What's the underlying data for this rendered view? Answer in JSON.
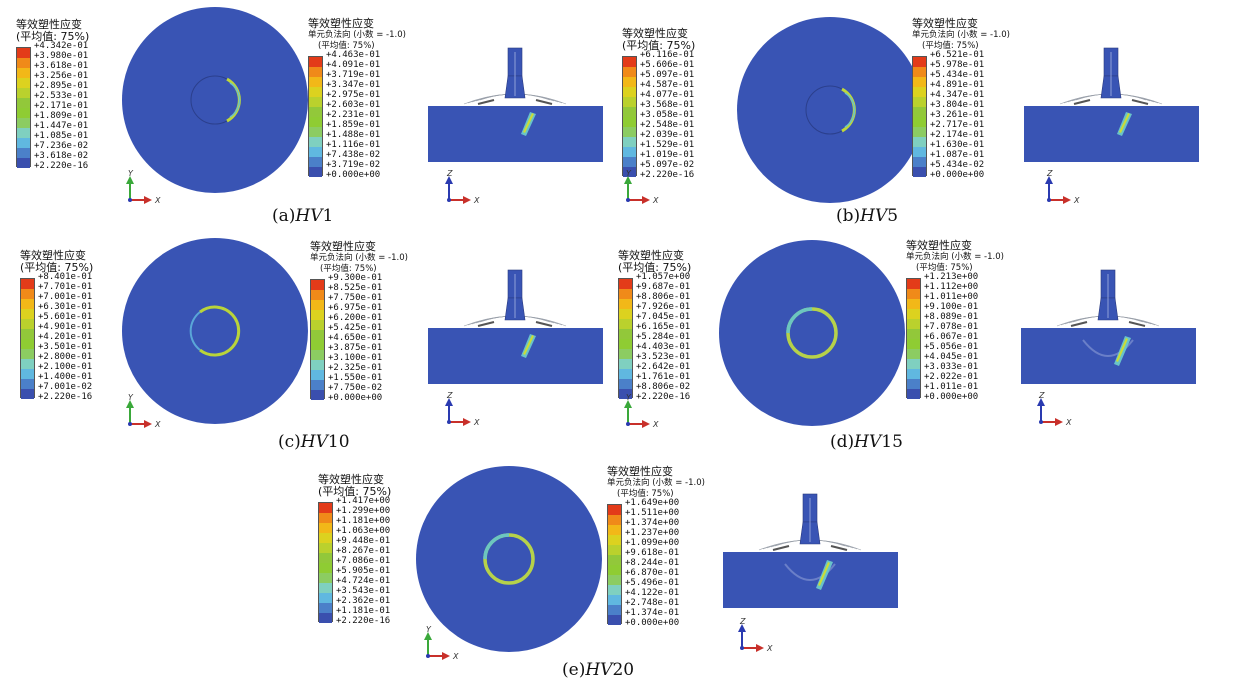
{
  "colors": {
    "model_blue": "#3954b4",
    "legend": [
      "#3a4fae",
      "#3a4fae",
      "#4b80c9",
      "#60b8e0",
      "#7fd0c0",
      "#8ccc62",
      "#8fcc33",
      "#92c83a",
      "#bad12d",
      "#dcd21f",
      "#f2b818",
      "#f08a19",
      "#e33b19"
    ]
  },
  "panels": [
    {
      "id": "a",
      "caption_prefix": "(a)",
      "caption_var": "HV",
      "caption_num": "1",
      "left_legend": {
        "title": "等效塑性应变",
        "sub": "(平均值: 75%)",
        "values": [
          "+4.342e-01",
          "+3.980e-01",
          "+3.618e-01",
          "+3.256e-01",
          "+2.895e-01",
          "+2.533e-01",
          "+2.171e-01",
          "+1.809e-01",
          "+1.447e-01",
          "+1.085e-01",
          "+7.236e-02",
          "+3.618e-02",
          "+2.220e-16"
        ]
      },
      "right_legend": {
        "title": "等效塑性应变",
        "sub1": "单元负法向 (小数 = -1.0)",
        "sub2": "(平均值: 75%)",
        "values": [
          "+4.463e-01",
          "+4.091e-01",
          "+3.719e-01",
          "+3.347e-01",
          "+2.975e-01",
          "+2.603e-01",
          "+2.231e-01",
          "+1.859e-01",
          "+1.488e-01",
          "+1.116e-01",
          "+7.438e-02",
          "+3.719e-02",
          "+0.000e+00"
        ]
      },
      "ring": "partial"
    },
    {
      "id": "b",
      "caption_prefix": "(b)",
      "caption_var": "HV",
      "caption_num": "5",
      "left_legend": {
        "title": "等效塑性应变",
        "sub": "(平均值: 75%)",
        "values": [
          "+6.116e-01",
          "+5.606e-01",
          "+5.097e-01",
          "+4.587e-01",
          "+4.077e-01",
          "+3.568e-01",
          "+3.058e-01",
          "+2.548e-01",
          "+2.039e-01",
          "+1.529e-01",
          "+1.019e-01",
          "+5.097e-02",
          "+2.220e-16"
        ]
      },
      "right_legend": {
        "title": "等效塑性应变",
        "sub1": "单元负法向 (小数 = -1.0)",
        "sub2": "(平均值: 75%)",
        "values": [
          "+6.521e-01",
          "+5.978e-01",
          "+5.434e-01",
          "+4.891e-01",
          "+4.347e-01",
          "+3.804e-01",
          "+3.261e-01",
          "+2.717e-01",
          "+2.174e-01",
          "+1.630e-01",
          "+1.087e-01",
          "+5.434e-02",
          "+0.000e+00"
        ]
      },
      "ring": "partial"
    },
    {
      "id": "c",
      "caption_prefix": "(c)",
      "caption_var": "HV",
      "caption_num": "10",
      "left_legend": {
        "title": "等效塑性应变",
        "sub": "(平均值: 75%)",
        "values": [
          "+8.401e-01",
          "+7.701e-01",
          "+7.001e-01",
          "+6.301e-01",
          "+5.601e-01",
          "+4.901e-01",
          "+4.201e-01",
          "+3.501e-01",
          "+2.800e-01",
          "+2.100e-01",
          "+1.400e-01",
          "+7.001e-02",
          "+2.220e-16"
        ]
      },
      "right_legend": {
        "title": "等效塑性应变",
        "sub1": "单元负法向 (小数 = -1.0)",
        "sub2": "(平均值: 75%)",
        "values": [
          "+9.300e-01",
          "+8.525e-01",
          "+7.750e-01",
          "+6.975e-01",
          "+6.200e-01",
          "+5.425e-01",
          "+4.650e-01",
          "+3.875e-01",
          "+3.100e-01",
          "+2.325e-01",
          "+1.550e-01",
          "+7.750e-02",
          "+0.000e+00"
        ]
      },
      "ring": "mostly"
    },
    {
      "id": "d",
      "caption_prefix": "(d)",
      "caption_var": "HV",
      "caption_num": "15",
      "left_legend": {
        "title": "等效塑性应变",
        "sub": "(平均值: 75%)",
        "values": [
          "+1.057e+00",
          "+9.687e-01",
          "+8.806e-01",
          "+7.926e-01",
          "+7.045e-01",
          "+6.165e-01",
          "+5.284e-01",
          "+4.403e-01",
          "+3.523e-01",
          "+2.642e-01",
          "+1.761e-01",
          "+8.806e-02",
          "+2.220e-16"
        ]
      },
      "right_legend": {
        "title": "等效塑性应变",
        "sub1": "单元负法向 (小数 = -1.0)",
        "sub2": "(平均值: 75%)",
        "values": [
          "+1.213e+00",
          "+1.112e+00",
          "+1.011e+00",
          "+9.100e-01",
          "+8.089e-01",
          "+7.078e-01",
          "+6.067e-01",
          "+5.056e-01",
          "+4.045e-01",
          "+3.033e-01",
          "+2.022e-01",
          "+1.011e-01",
          "+0.000e+00"
        ]
      },
      "ring": "full"
    },
    {
      "id": "e",
      "caption_prefix": "(e)",
      "caption_var": "HV",
      "caption_num": "20",
      "left_legend": {
        "title": "等效塑性应变",
        "sub": "(平均值: 75%)",
        "values": [
          "+1.417e+00",
          "+1.299e+00",
          "+1.181e+00",
          "+1.063e+00",
          "+9.448e-01",
          "+8.267e-01",
          "+7.086e-01",
          "+5.905e-01",
          "+4.724e-01",
          "+3.543e-01",
          "+2.362e-01",
          "+1.181e-01",
          "+2.220e-16"
        ]
      },
      "right_legend": {
        "title": "等效塑性应变",
        "sub1": "单元负法向 (小数 = -1.0)",
        "sub2": "(平均值: 75%)",
        "values": [
          "+1.649e+00",
          "+1.511e+00",
          "+1.374e+00",
          "+1.237e+00",
          "+1.099e+00",
          "+9.618e-01",
          "+8.244e-01",
          "+6.870e-01",
          "+5.496e-01",
          "+4.122e-01",
          "+2.748e-01",
          "+1.374e-01",
          "+0.000e+00"
        ]
      },
      "ring": "full"
    }
  ],
  "axes": {
    "y": "Y",
    "x": "X",
    "z": "Z"
  }
}
